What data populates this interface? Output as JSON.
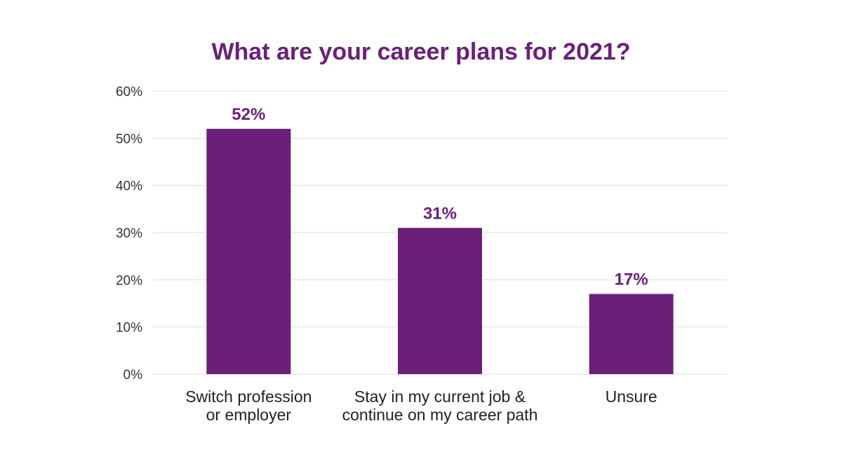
{
  "colors": {
    "accent": "#6a2079",
    "gridline": "#dddddd",
    "axis_text": "#333333"
  },
  "chart_data": {
    "type": "bar",
    "title": "What are your career plans for 2021?",
    "xlabel": "",
    "ylabel": "",
    "categories": [
      [
        "Switch profession",
        "or employer"
      ],
      [
        "Stay in my current job &",
        "continue on my career path"
      ],
      [
        "Unsure"
      ]
    ],
    "values": [
      52,
      31,
      17
    ],
    "data_labels": [
      "52%",
      "31%",
      "17%"
    ],
    "ylim": [
      0,
      60
    ],
    "yticks": [
      0,
      10,
      20,
      30,
      40,
      50,
      60
    ],
    "ytick_labels": [
      "0%",
      "10%",
      "20%",
      "30%",
      "40%",
      "50%",
      "60%"
    ],
    "grid": true,
    "legend": "none"
  }
}
